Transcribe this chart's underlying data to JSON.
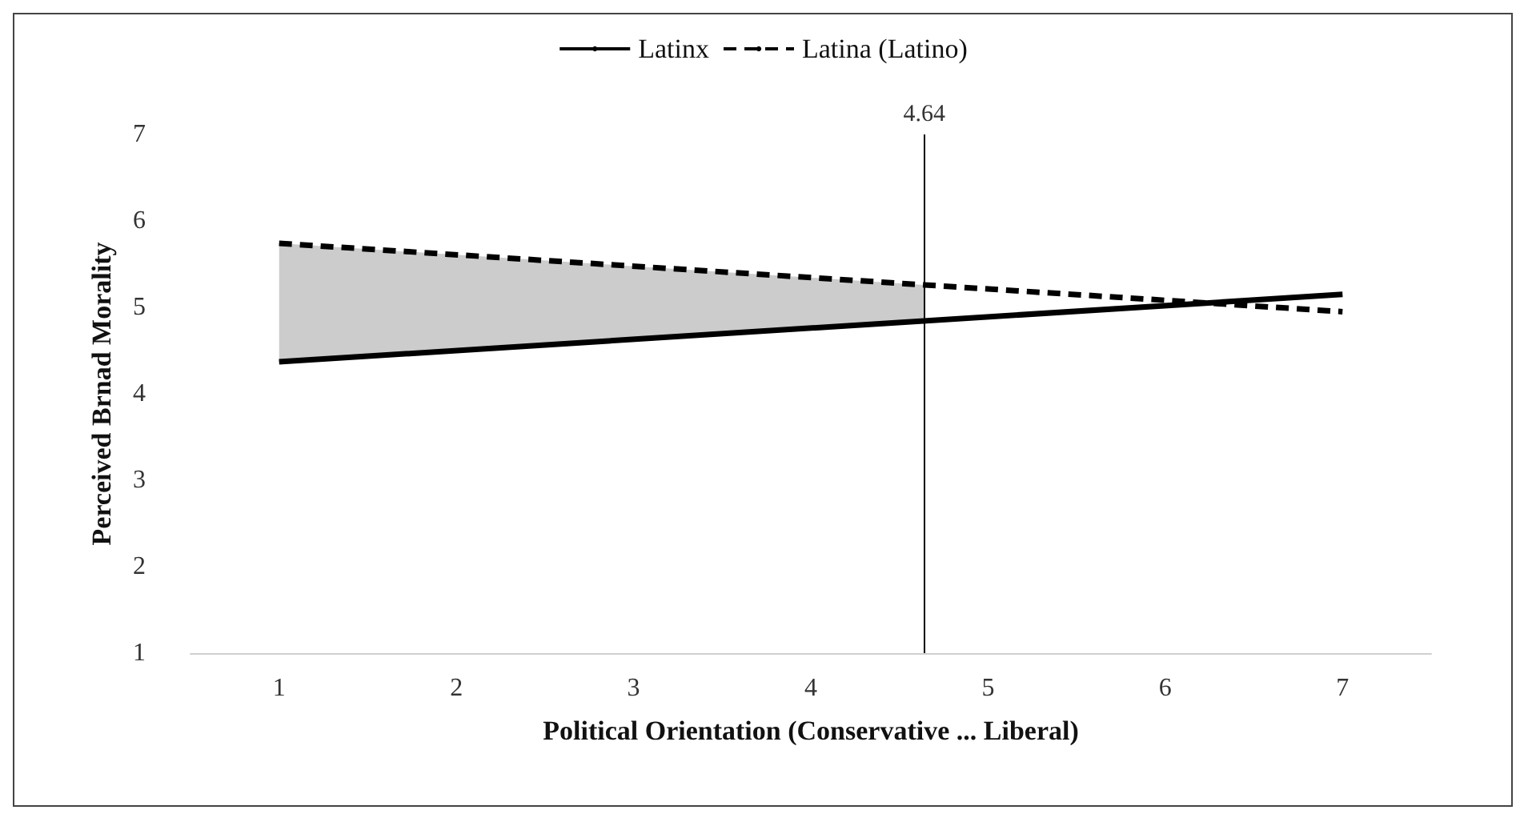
{
  "chart_data": {
    "type": "line",
    "xlabel": "Political Orientation (Conservative ... Liberal)",
    "ylabel": "Perceived Brnad Morality",
    "series": [
      {
        "name": "Latinx",
        "color": "#000000",
        "x": [
          1,
          7
        ],
        "values": [
          4.37,
          5.15
        ],
        "line_style": "solid"
      },
      {
        "name": "Latina (Latino)",
        "color": "#000000",
        "x": [
          1,
          4.64,
          7
        ],
        "values": [
          5.74,
          5.26,
          4.95
        ],
        "lower": [
          4.37,
          4.84,
          null
        ],
        "upper": [
          5.74,
          5.26,
          null
        ],
        "line_style": "dashed"
      }
    ],
    "xlim": [
      0.5,
      7.5
    ],
    "xticks": [
      1,
      2,
      3,
      4,
      5,
      6,
      7
    ],
    "ylim": [
      1,
      7
    ],
    "yticks": [
      1,
      2,
      3,
      4,
      5,
      6,
      7
    ],
    "ref_lines": [
      {
        "axis": "x",
        "value": 4.64,
        "label": "4.64",
        "color": "#000000"
      }
    ],
    "grid": false,
    "legend": "top",
    "marker": "none"
  }
}
